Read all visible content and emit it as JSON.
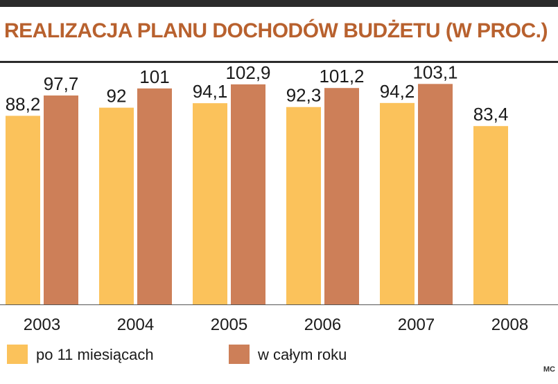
{
  "title": "REALIZACJA PLANU DOCHODÓW BUDŻETU (W PROC.)",
  "source_credit": "MC",
  "colors": {
    "series_11_months": "#fbc25b",
    "series_full_year": "#cd7f58",
    "title": "#b8612e"
  },
  "legend": {
    "items": [
      {
        "label": "po 11 miesiącach",
        "color": "#fbc25b"
      },
      {
        "label": "w całym roku",
        "color": "#cd7f58"
      }
    ]
  },
  "chart_data": {
    "type": "bar",
    "title": "REALIZACJA PLANU DOCHODÓW BUDŻETU (W PROC.)",
    "xlabel": "",
    "ylabel": "",
    "ylim": [
      0,
      110
    ],
    "grid": false,
    "legend_position": "bottom-left",
    "categories": [
      "2003",
      "2004",
      "2005",
      "2006",
      "2007",
      "2008"
    ],
    "series": [
      {
        "name": "po 11 miesiącach",
        "color": "#fbc25b",
        "values": [
          88.2,
          92,
          94.1,
          92.3,
          94.2,
          83.4
        ],
        "labels": [
          "88,2",
          "92",
          "94,1",
          "92,3",
          "94,2",
          "83,4"
        ]
      },
      {
        "name": "w całym roku",
        "color": "#cd7f58",
        "values": [
          97.7,
          101,
          102.9,
          101.2,
          103.1,
          null
        ],
        "labels": [
          "97,7",
          "101",
          "102,9",
          "101,2",
          "103,1",
          ""
        ]
      }
    ]
  }
}
